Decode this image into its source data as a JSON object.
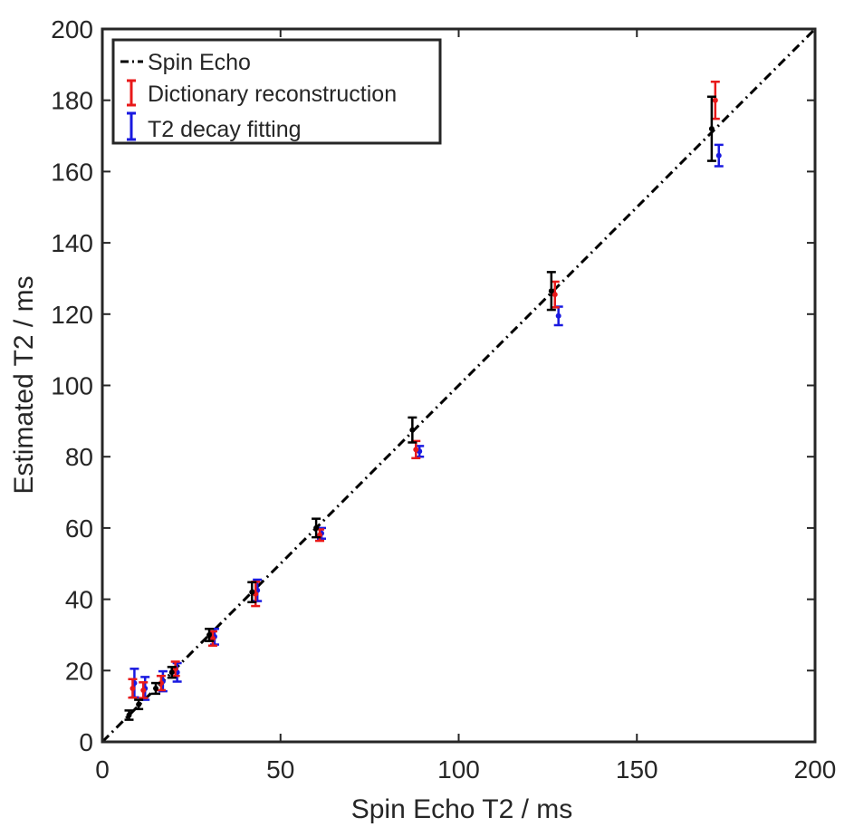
{
  "chart_data": {
    "type": "scatter",
    "xlabel": "Spin Echo T2 / ms",
    "ylabel": "Estimated T2 / ms",
    "xlim": [
      0,
      200
    ],
    "ylim": [
      0,
      200
    ],
    "x_ticks": [
      0,
      50,
      100,
      150,
      200
    ],
    "y_ticks": [
      0,
      20,
      40,
      60,
      80,
      100,
      120,
      140,
      160,
      180,
      200
    ],
    "grid": false,
    "legend_position": "top-left",
    "identity_line": {
      "from": [
        0,
        0
      ],
      "to": [
        200,
        200
      ],
      "style": "dash-dot"
    },
    "series": [
      {
        "name": "Spin Echo",
        "color": "#000000",
        "marker": "dash-dot line",
        "points": [
          {
            "x": 7.5,
            "y": 7.5,
            "err": 1.3
          },
          {
            "x": 10.2,
            "y": 10.5,
            "err": 1.3
          },
          {
            "x": 15.0,
            "y": 15.0,
            "err": 1.5
          },
          {
            "x": 19.5,
            "y": 19.5,
            "err": 1.5
          },
          {
            "x": 30.0,
            "y": 30.0,
            "err": 1.7
          },
          {
            "x": 42.0,
            "y": 42.0,
            "err": 2.8
          },
          {
            "x": 60.0,
            "y": 60.0,
            "err": 2.6
          },
          {
            "x": 87.0,
            "y": 87.5,
            "err": 3.5
          },
          {
            "x": 126.0,
            "y": 126.5,
            "err": 5.3
          },
          {
            "x": 171.0,
            "y": 172.0,
            "err": 9.0
          }
        ]
      },
      {
        "name": "Dictionary reconstruction",
        "color": "#e8191a",
        "marker": "errorbar",
        "points": [
          {
            "x": 8.5,
            "y": 15.0,
            "err": 2.6
          },
          {
            "x": 11.5,
            "y": 14.5,
            "err": 2.2
          },
          {
            "x": 16.5,
            "y": 16.5,
            "err": 2.0
          },
          {
            "x": 20.5,
            "y": 20.5,
            "err": 2.0
          },
          {
            "x": 31.0,
            "y": 29.0,
            "err": 2.0
          },
          {
            "x": 43.0,
            "y": 41.5,
            "err": 3.4
          },
          {
            "x": 61.0,
            "y": 58.0,
            "err": 1.6
          },
          {
            "x": 88.0,
            "y": 82.0,
            "err": 2.4
          },
          {
            "x": 127.0,
            "y": 125.5,
            "err": 3.6
          },
          {
            "x": 172.0,
            "y": 180.0,
            "err": 5.2
          }
        ]
      },
      {
        "name": "T2 decay fitting",
        "color": "#1919e0",
        "marker": "errorbar",
        "points": [
          {
            "x": 9.0,
            "y": 16.5,
            "err": 4.0
          },
          {
            "x": 12.0,
            "y": 15.0,
            "err": 3.2
          },
          {
            "x": 17.0,
            "y": 17.0,
            "err": 2.8
          },
          {
            "x": 21.0,
            "y": 19.5,
            "err": 2.6
          },
          {
            "x": 31.5,
            "y": 29.5,
            "err": 2.2
          },
          {
            "x": 43.5,
            "y": 42.5,
            "err": 3.0
          },
          {
            "x": 61.5,
            "y": 58.5,
            "err": 1.5
          },
          {
            "x": 89.0,
            "y": 81.5,
            "err": 1.5
          },
          {
            "x": 128.0,
            "y": 119.5,
            "err": 2.6
          },
          {
            "x": 173.0,
            "y": 164.5,
            "err": 3.0
          }
        ]
      }
    ]
  }
}
